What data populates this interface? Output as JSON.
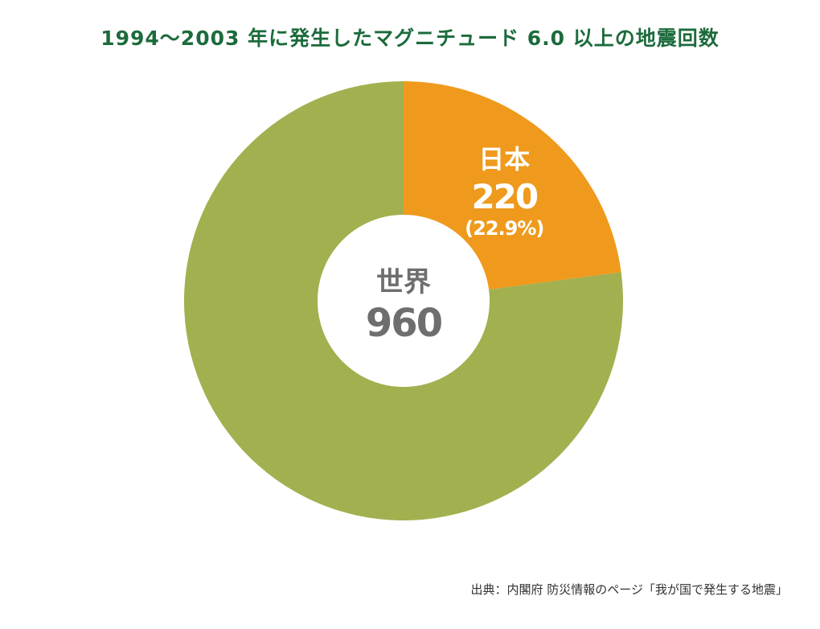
{
  "colors": {
    "title": "#1c6b3c",
    "world": "#a2b04f",
    "japan": "#ef9a1d",
    "center_text": "#6e6e6e",
    "japan_text": "#ffffff"
  },
  "chart_data": {
    "type": "pie",
    "variant": "donut",
    "title": "1994〜2003 年に発生したマグニチュード 6.0 以上の地震回数",
    "total": 960,
    "center_label": "世界",
    "center_value": "960",
    "slices": [
      {
        "label": "日本",
        "value": 220,
        "value_label": "220",
        "percent_label": "(22.9%)",
        "color": "#ef9a1d"
      },
      {
        "label": "",
        "value": 740,
        "color": "#a2b04f"
      }
    ],
    "legend": "none"
  },
  "source": "出典：内閣府 防災情報のページ「我が国で発生する地震」"
}
